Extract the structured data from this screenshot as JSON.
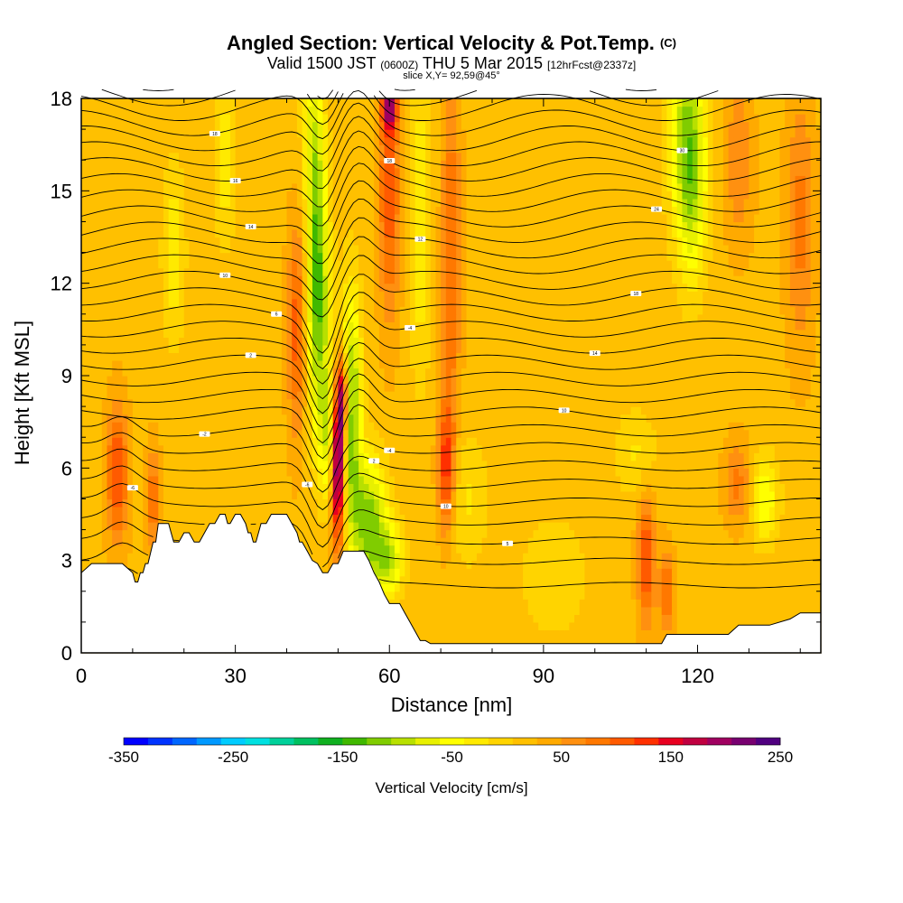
{
  "header": {
    "title": "Angled Section: Vertical Velocity & Pot.Temp.",
    "title_unit": "(C)",
    "valid_a": "Valid 1500 JST",
    "valid_utc": "(0600Z)",
    "valid_b": "THU 5 Mar 2015",
    "forecast": "[12hrFcst@2337z]",
    "slice": "slice X,Y= 92,59@45°"
  },
  "chart_data": {
    "type": "heatmap",
    "title": "Angled Section: Vertical Velocity & Pot.Temp. (C)",
    "xlabel": "Distance [nm]",
    "ylabel": "Height [Kft MSL]",
    "xlim": [
      0,
      144
    ],
    "ylim": [
      0,
      18
    ],
    "x_ticks": [
      0,
      30,
      60,
      90,
      120
    ],
    "y_ticks": [
      0,
      3,
      6,
      9,
      12,
      15,
      18
    ],
    "grid": false,
    "colorbar": {
      "label": "Vertical Velocity [cm/s]",
      "min": -350,
      "max": 250,
      "step": 25,
      "tick_labels": [
        -350,
        -250,
        -150,
        -50,
        50,
        150,
        250
      ],
      "colors": [
        "#0000ff",
        "#0033ff",
        "#0066ff",
        "#0099ff",
        "#00ccff",
        "#00e0e0",
        "#00d09a",
        "#00c060",
        "#10b020",
        "#40b800",
        "#80cc00",
        "#b8e000",
        "#e8f000",
        "#ffff00",
        "#ffea00",
        "#ffd400",
        "#ffc000",
        "#ffaa00",
        "#ff9010",
        "#ff7800",
        "#ff5a00",
        "#ff3000",
        "#e80020",
        "#c00040",
        "#a00060",
        "#780070",
        "#500080"
      ]
    },
    "background_velocity": 20,
    "velocity_features": [
      {
        "name": "updraft",
        "x": 7,
        "z": 5.8,
        "sx": 1.5,
        "sz": 1.6,
        "value": 100
      },
      {
        "name": "updraft",
        "x": 14,
        "z": 5.0,
        "sx": 1.0,
        "sz": 1.2,
        "value": 70
      },
      {
        "name": "updraft",
        "x": 42,
        "z": 10.5,
        "sx": 1.3,
        "sz": 2.5,
        "value": 90
      },
      {
        "name": "updraft",
        "x": 44,
        "z": 14.0,
        "sx": 1.3,
        "sz": 3.0,
        "value": 70
      },
      {
        "name": "downdraft",
        "x": 45,
        "z": 15.5,
        "sx": 1.6,
        "sz": 3.0,
        "value": -150
      },
      {
        "name": "downdraft",
        "x": 46,
        "z": 11.0,
        "sx": 1.8,
        "sz": 2.5,
        "value": -130
      },
      {
        "name": "downdraft",
        "x": 48,
        "z": 7.0,
        "sx": 1.5,
        "sz": 1.5,
        "value": -90
      },
      {
        "name": "updraft",
        "x": 50,
        "z": 6.2,
        "sx": 0.9,
        "sz": 1.8,
        "value": 260
      },
      {
        "name": "updraft",
        "x": 51,
        "z": 8.3,
        "sx": 0.8,
        "sz": 1.0,
        "value": 160
      },
      {
        "name": "downdraft",
        "x": 52.5,
        "z": 8.0,
        "sx": 1.4,
        "sz": 2.6,
        "value": -150
      },
      {
        "name": "downdraft",
        "x": 56,
        "z": 4.2,
        "sx": 2.5,
        "sz": 1.5,
        "value": -140
      },
      {
        "name": "downdraft",
        "x": 60,
        "z": 3.0,
        "sx": 2.0,
        "sz": 0.8,
        "value": -100
      },
      {
        "name": "updraft",
        "x": 60,
        "z": 15.0,
        "sx": 1.5,
        "sz": 3.0,
        "value": 90
      },
      {
        "name": "updraft",
        "x": 60,
        "z": 17.8,
        "sx": 1.0,
        "sz": 0.6,
        "value": 150
      },
      {
        "name": "downdraft",
        "x": 66,
        "z": 14.0,
        "sx": 1.5,
        "sz": 3.5,
        "value": -60
      },
      {
        "name": "updraft",
        "x": 71,
        "z": 6.0,
        "sx": 1.2,
        "sz": 1.5,
        "value": 110
      },
      {
        "name": "updraft",
        "x": 72,
        "z": 13.0,
        "sx": 1.3,
        "sz": 4.0,
        "value": 80
      },
      {
        "name": "downdraft",
        "x": 75,
        "z": 5.0,
        "sx": 3.0,
        "sz": 1.5,
        "value": -40
      },
      {
        "name": "downdraft",
        "x": 92,
        "z": 2.5,
        "sx": 5.0,
        "sz": 1.5,
        "value": -30
      },
      {
        "name": "downdraft",
        "x": 18,
        "z": 13.0,
        "sx": 1.5,
        "sz": 2.0,
        "value": -60
      },
      {
        "name": "downdraft",
        "x": 28,
        "z": 16.0,
        "sx": 1.5,
        "sz": 2.0,
        "value": -50
      },
      {
        "name": "downdraft",
        "x": 108,
        "z": 6.5,
        "sx": 3.0,
        "sz": 1.0,
        "value": -40
      },
      {
        "name": "updraft",
        "x": 110,
        "z": 3.0,
        "sx": 1.2,
        "sz": 1.5,
        "value": 100
      },
      {
        "name": "updraft",
        "x": 114,
        "z": 2.0,
        "sx": 1.0,
        "sz": 1.0,
        "value": 80
      },
      {
        "name": "downdraft",
        "x": 118,
        "z": 17.0,
        "sx": 2.5,
        "sz": 2.5,
        "value": -120
      },
      {
        "name": "downdraft",
        "x": 119,
        "z": 14.5,
        "sx": 2.0,
        "sz": 2.0,
        "value": -60
      },
      {
        "name": "downdraft",
        "x": 133,
        "z": 5.0,
        "sx": 2.0,
        "sz": 1.0,
        "value": -80
      },
      {
        "name": "updraft",
        "x": 128,
        "z": 5.5,
        "sx": 2.0,
        "sz": 1.0,
        "value": 60
      },
      {
        "name": "updraft",
        "x": 140,
        "z": 14.0,
        "sx": 2.0,
        "sz": 3.0,
        "value": 60
      },
      {
        "name": "updraft",
        "x": 128,
        "z": 16.0,
        "sx": 2.0,
        "sz": 2.0,
        "value": 50
      }
    ],
    "terrain_height": {
      "x": [
        0,
        2,
        3,
        8,
        10,
        10.5,
        11,
        11.5,
        12,
        12.5,
        13,
        14,
        14.5,
        15,
        16,
        17,
        17.5,
        18,
        19,
        20,
        21,
        22,
        23,
        24,
        25,
        26,
        27,
        28,
        28.5,
        29,
        30,
        31,
        32,
        32.5,
        33,
        33.5,
        34,
        35,
        36,
        37,
        38,
        39,
        40,
        41,
        42,
        42.5,
        43,
        44,
        45,
        46,
        47,
        48,
        49,
        50,
        51,
        52,
        53,
        54,
        55,
        56,
        57,
        58,
        59,
        60,
        61,
        62,
        63,
        64,
        65,
        66,
        67,
        68,
        70,
        80,
        100,
        110,
        112,
        113,
        114,
        115,
        120,
        126,
        128,
        130,
        134,
        138,
        140,
        144
      ],
      "y": [
        2.6,
        2.9,
        2.9,
        2.9,
        2.6,
        2.3,
        2.3,
        2.6,
        2.6,
        2.9,
        2.9,
        3.6,
        3.6,
        4.2,
        4.2,
        4.2,
        3.9,
        3.6,
        3.6,
        3.9,
        3.9,
        3.6,
        3.6,
        3.9,
        4.2,
        4.2,
        4.5,
        4.5,
        4.2,
        4.2,
        4.5,
        4.5,
        4.2,
        3.9,
        3.9,
        3.6,
        3.6,
        4.2,
        4.2,
        4.5,
        4.5,
        4.5,
        4.5,
        4.2,
        3.9,
        3.6,
        3.6,
        3.3,
        3.0,
        2.9,
        2.6,
        2.6,
        2.9,
        2.9,
        3.3,
        3.3,
        3.3,
        3.3,
        3.3,
        3.0,
        2.6,
        2.3,
        1.9,
        1.6,
        1.6,
        1.6,
        1.3,
        1.0,
        0.7,
        0.4,
        0.4,
        0.3,
        0.3,
        0.3,
        0.3,
        0.3,
        0.3,
        0.3,
        0.6,
        0.6,
        0.6,
        0.6,
        0.9,
        0.9,
        0.9,
        1.1,
        1.3,
        1.3
      ]
    },
    "isentropes": {
      "count": 31,
      "label_samples": [
        {
          "x": 20,
          "level": 30,
          "label": "24"
        },
        {
          "x": 26,
          "level": 27,
          "label": "18"
        },
        {
          "x": 30,
          "level": 24,
          "label": "16"
        },
        {
          "x": 33,
          "level": 21,
          "label": "14"
        },
        {
          "x": 28,
          "level": 17,
          "label": "10"
        },
        {
          "x": 38,
          "level": 15,
          "label": "6"
        },
        {
          "x": 33,
          "level": 12,
          "label": "2"
        },
        {
          "x": 24,
          "level": 8,
          "label": "-2"
        },
        {
          "x": 10,
          "level": 4,
          "label": "-6"
        },
        {
          "x": 44,
          "level": 6,
          "label": "-6"
        },
        {
          "x": 57,
          "level": 6,
          "label": "2"
        },
        {
          "x": 60,
          "level": 7,
          "label": "-4"
        },
        {
          "x": 64,
          "level": 14,
          "label": "-4"
        },
        {
          "x": 60,
          "level": 24,
          "label": "18"
        },
        {
          "x": 66,
          "level": 19,
          "label": "12"
        },
        {
          "x": 71,
          "level": 4,
          "label": "10"
        },
        {
          "x": 83,
          "level": 2,
          "label": "5"
        },
        {
          "x": 94,
          "level": 9,
          "label": "10"
        },
        {
          "x": 100,
          "level": 13,
          "label": "14"
        },
        {
          "x": 108,
          "level": 16,
          "label": "18"
        },
        {
          "x": 112,
          "level": 21,
          "label": "24"
        },
        {
          "x": 117,
          "level": 26,
          "label": "30"
        },
        {
          "x": 124,
          "level": 30,
          "label": "34"
        }
      ]
    }
  }
}
